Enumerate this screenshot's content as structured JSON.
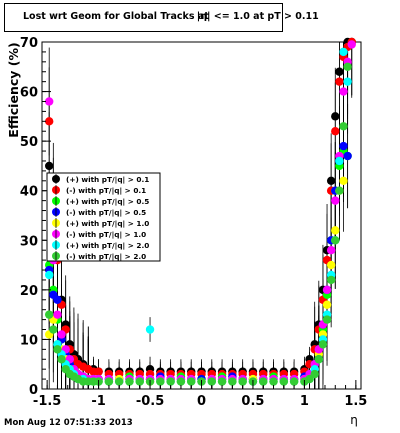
{
  "title": "Lost wrt Geom for Global Tracks at",
  "subtitle": "|η| <= 1.0 at pT > 0.11",
  "timestamp": "Mon Aug 12 07:51:33 2013",
  "chart_data": {
    "type": "scatter",
    "xlabel": "η",
    "ylabel": "Efficiency (%)",
    "xlim": [
      -1.55,
      1.55
    ],
    "ylim": [
      0,
      70
    ],
    "x_ticks": [
      "-1.5",
      "-1",
      "-0.5",
      "0",
      "0.5",
      "1",
      "1.5"
    ],
    "y_ticks": [
      "0",
      "10",
      "20",
      "30",
      "40",
      "50",
      "60",
      "70"
    ],
    "grid": false,
    "legend_position": "middle-left",
    "series": [
      {
        "name": "(+) with pT/|q| > 0.1",
        "color": "#000000",
        "x": [
          -1.48,
          -1.44,
          -1.4,
          -1.36,
          -1.32,
          -1.28,
          -1.24,
          -1.2,
          -1.15,
          -1.1,
          -1.05,
          -1.0,
          -0.9,
          -0.8,
          -0.7,
          -0.6,
          -0.5,
          -0.4,
          -0.3,
          -0.2,
          -0.1,
          0.0,
          0.1,
          0.2,
          0.3,
          0.4,
          0.5,
          0.6,
          0.7,
          0.8,
          0.9,
          1.0,
          1.05,
          1.1,
          1.14,
          1.18,
          1.22,
          1.26,
          1.3,
          1.34,
          1.38,
          1.42,
          1.46
        ],
        "y": [
          45,
          39,
          27,
          18,
          13,
          9,
          7,
          6,
          5,
          4,
          4,
          3.5,
          3.5,
          3.5,
          3.5,
          3.5,
          4,
          3.5,
          3.5,
          3.5,
          3.5,
          3.5,
          3.5,
          3.5,
          3.5,
          3.5,
          3.5,
          3.5,
          3.5,
          3.5,
          3.5,
          4,
          6,
          9,
          13,
          20,
          28,
          42,
          55,
          64,
          68,
          70,
          70
        ]
      },
      {
        "name": "(-) with pT/|q| > 0.1",
        "color": "#ff0000",
        "x": [
          -1.48,
          -1.44,
          -1.4,
          -1.36,
          -1.32,
          -1.28,
          -1.24,
          -1.2,
          -1.15,
          -1.1,
          -1.05,
          -1.0,
          -0.9,
          -0.8,
          -0.7,
          -0.6,
          -0.5,
          -0.4,
          -0.3,
          -0.2,
          -0.1,
          0.0,
          0.1,
          0.2,
          0.3,
          0.4,
          0.5,
          0.6,
          0.7,
          0.8,
          0.9,
          1.0,
          1.05,
          1.1,
          1.14,
          1.18,
          1.22,
          1.26,
          1.3,
          1.34,
          1.38,
          1.42,
          1.46
        ],
        "y": [
          54,
          36,
          26,
          17,
          12,
          8,
          6,
          5,
          4.5,
          4,
          3.5,
          3.5,
          3,
          3,
          3,
          3,
          3,
          3,
          3,
          3,
          3,
          3,
          3,
          3,
          3,
          3,
          3,
          3,
          3,
          3,
          3,
          3.5,
          5,
          8,
          12,
          18,
          26,
          40,
          52,
          62,
          67,
          69,
          70
        ]
      },
      {
        "name": "(+) with pT/|q| > 0.5",
        "color": "#00ff00",
        "x": [
          -1.48,
          -1.44,
          -1.4,
          -1.36,
          -1.32,
          -1.28,
          -1.24,
          -1.2,
          -1.15,
          -1.1,
          -1.05,
          -1.0,
          -0.9,
          -0.8,
          -0.7,
          -0.6,
          -0.5,
          -0.4,
          -0.3,
          -0.2,
          -0.1,
          0.0,
          0.1,
          0.2,
          0.3,
          0.4,
          0.5,
          0.6,
          0.7,
          0.8,
          0.9,
          1.0,
          1.05,
          1.1,
          1.14,
          1.18,
          1.22,
          1.26,
          1.3,
          1.34,
          1.38,
          1.42
        ],
        "y": [
          25,
          20,
          14,
          10,
          7,
          5,
          4,
          3,
          2.5,
          2,
          2,
          2,
          2,
          2,
          2.5,
          2,
          2,
          2,
          2,
          2.5,
          2,
          2,
          2,
          2.5,
          2,
          2,
          2,
          2,
          2.5,
          2,
          2,
          2,
          3,
          5,
          8,
          12,
          19,
          30,
          40,
          45,
          48,
          47
        ]
      },
      {
        "name": "(-) with pT/|q| > 0.5",
        "color": "#0000ff",
        "x": [
          -1.48,
          -1.44,
          -1.4,
          -1.36,
          -1.32,
          -1.28,
          -1.24,
          -1.2,
          -1.15,
          -1.1,
          -1.05,
          -1.0,
          -0.9,
          -0.8,
          -0.7,
          -0.6,
          -0.5,
          -0.4,
          -0.3,
          -0.2,
          -0.1,
          0.0,
          0.1,
          0.2,
          0.3,
          0.4,
          0.5,
          0.6,
          0.7,
          0.8,
          0.9,
          1.0,
          1.05,
          1.1,
          1.14,
          1.18,
          1.22,
          1.26,
          1.3,
          1.34,
          1.38,
          1.42
        ],
        "y": [
          24,
          19,
          18,
          10,
          7,
          5,
          4,
          3,
          2.5,
          2,
          2,
          2,
          2,
          2,
          2,
          2,
          2,
          2.5,
          2,
          2,
          2,
          2,
          2,
          2,
          2.5,
          2,
          2,
          2,
          2,
          2,
          2,
          2.5,
          3,
          5,
          8,
          13,
          20,
          30,
          40,
          46,
          49,
          47
        ]
      },
      {
        "name": "(+) with pT/|q| > 1.0",
        "color": "#ffff00",
        "x": [
          -1.48,
          -1.44,
          -1.4,
          -1.36,
          -1.32,
          -1.28,
          -1.24,
          -1.2,
          -1.15,
          -1.1,
          -1.05,
          -1.0,
          -0.9,
          -0.8,
          -0.7,
          -0.6,
          -0.5,
          -0.4,
          -0.3,
          -0.2,
          -0.1,
          0.0,
          0.1,
          0.2,
          0.3,
          0.4,
          0.5,
          0.6,
          0.7,
          0.8,
          0.9,
          1.0,
          1.05,
          1.1,
          1.14,
          1.18,
          1.22,
          1.26,
          1.3,
          1.34,
          1.38
        ],
        "y": [
          11,
          14,
          9,
          8,
          6,
          4,
          3,
          2.5,
          2,
          2,
          1.5,
          1.5,
          1.5,
          2,
          1.5,
          1.5,
          1.5,
          1.5,
          2,
          1.5,
          1.5,
          1.5,
          2,
          1.5,
          1.5,
          1.5,
          2,
          1.5,
          1.5,
          1.5,
          1.5,
          2,
          2.5,
          4,
          7,
          11,
          17,
          25,
          32,
          40,
          42
        ]
      },
      {
        "name": "(-) with pT/|q| > 1.0",
        "color": "#ff00ff",
        "x": [
          -1.48,
          -1.44,
          -1.4,
          -1.36,
          -1.32,
          -1.28,
          -1.24,
          -1.2,
          -1.15,
          -1.1,
          -1.05,
          -1.0,
          -0.9,
          -0.8,
          -0.7,
          -0.6,
          -0.5,
          -0.4,
          -0.3,
          -0.2,
          -0.1,
          0.0,
          0.1,
          0.2,
          0.3,
          0.4,
          0.5,
          0.6,
          0.7,
          0.8,
          0.9,
          1.0,
          1.05,
          1.1,
          1.14,
          1.18,
          1.22,
          1.26,
          1.3,
          1.34,
          1.38,
          1.42,
          1.46
        ],
        "y": [
          58,
          26,
          15,
          11,
          8,
          6,
          4,
          3,
          2.5,
          2,
          2,
          2,
          2,
          1.5,
          2,
          2,
          2,
          2,
          2,
          2,
          2,
          1.5,
          2,
          2,
          2,
          2,
          1.5,
          2,
          2,
          2,
          2,
          2,
          3,
          5,
          8,
          13,
          20,
          28,
          38,
          47,
          60,
          66,
          69.5
        ]
      },
      {
        "name": "(+) with pT/|q| > 2.0",
        "color": "#00ffff",
        "x": [
          -1.48,
          -1.44,
          -1.4,
          -1.36,
          -1.32,
          -1.28,
          -1.24,
          -1.2,
          -1.15,
          -1.1,
          -1.05,
          -1.0,
          -0.9,
          -0.8,
          -0.7,
          -0.6,
          -0.5,
          -0.4,
          -0.3,
          -0.2,
          -0.1,
          0.0,
          0.1,
          0.2,
          0.3,
          0.4,
          0.5,
          0.6,
          0.7,
          0.8,
          0.9,
          1.0,
          1.05,
          1.1,
          1.14,
          1.18,
          1.22,
          1.26,
          1.3,
          1.34,
          1.38,
          1.42
        ],
        "y": [
          23,
          28,
          9,
          7,
          5,
          4,
          3,
          2,
          2,
          1.5,
          1.5,
          1.5,
          1.5,
          1.5,
          1.5,
          1.5,
          12,
          1.5,
          1.5,
          1.5,
          1.5,
          1.5,
          1.5,
          1.5,
          1.5,
          1.5,
          1.5,
          1.5,
          1.5,
          1.5,
          1.5,
          1.5,
          2,
          4,
          6,
          10,
          15,
          23,
          30,
          46,
          68,
          62
        ]
      },
      {
        "name": "(-) with pT/|q| > 2.0",
        "color": "#33cc33",
        "x": [
          -1.48,
          -1.44,
          -1.4,
          -1.36,
          -1.32,
          -1.28,
          -1.24,
          -1.2,
          -1.15,
          -1.1,
          -1.05,
          -1.0,
          -0.9,
          -0.8,
          -0.7,
          -0.6,
          -0.5,
          -0.4,
          -0.3,
          -0.2,
          -0.1,
          0.0,
          0.1,
          0.2,
          0.3,
          0.4,
          0.5,
          0.6,
          0.7,
          0.8,
          0.9,
          1.0,
          1.05,
          1.1,
          1.14,
          1.18,
          1.22,
          1.26,
          1.3,
          1.34,
          1.38,
          1.42
        ],
        "y": [
          15,
          12,
          8,
          6,
          4,
          3,
          2.5,
          2,
          1.5,
          1.5,
          1.5,
          1.5,
          1.5,
          1.5,
          1.5,
          1.5,
          1.5,
          1.5,
          1.5,
          1.5,
          1.5,
          1.5,
          1.5,
          1.5,
          1.5,
          1.5,
          1.5,
          1.5,
          1.5,
          1.5,
          1.5,
          1.5,
          2,
          3,
          6,
          9,
          14,
          22,
          30,
          40,
          53,
          65
        ]
      }
    ]
  }
}
